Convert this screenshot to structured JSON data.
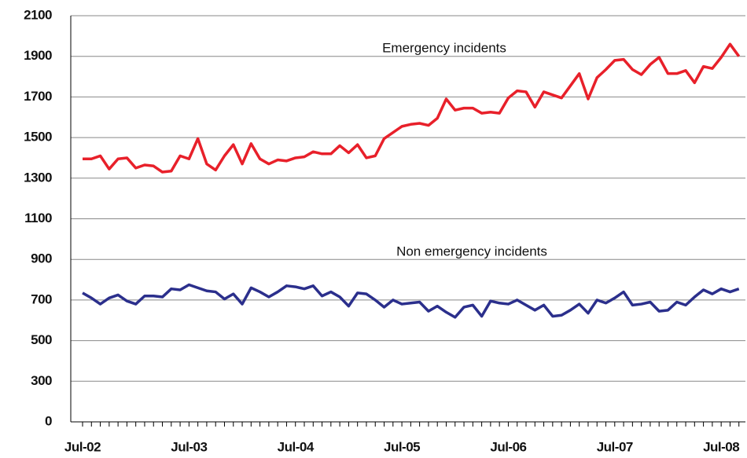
{
  "chart_data": {
    "type": "line",
    "categories": [
      "Jul-02",
      null,
      null,
      null,
      null,
      null,
      null,
      null,
      null,
      null,
      null,
      null,
      "Jul-03",
      null,
      null,
      null,
      null,
      null,
      null,
      null,
      null,
      null,
      null,
      null,
      "Jul-04",
      null,
      null,
      null,
      null,
      null,
      null,
      null,
      null,
      null,
      null,
      null,
      "Jul-05",
      null,
      null,
      null,
      null,
      null,
      null,
      null,
      null,
      null,
      null,
      null,
      "Jul-06",
      null,
      null,
      null,
      null,
      null,
      null,
      null,
      null,
      null,
      null,
      null,
      "Jul-07",
      null,
      null,
      null,
      null,
      null,
      null,
      null,
      null,
      null,
      null,
      null,
      "Jul-08",
      null,
      null
    ],
    "series": [
      {
        "name": "Emergency incidents",
        "color": "#e8202a",
        "values": [
          1395,
          1395,
          1410,
          1345,
          1395,
          1400,
          1350,
          1365,
          1360,
          1330,
          1335,
          1410,
          1395,
          1495,
          1370,
          1340,
          1410,
          1465,
          1370,
          1470,
          1395,
          1370,
          1390,
          1385,
          1400,
          1405,
          1430,
          1420,
          1420,
          1460,
          1425,
          1465,
          1400,
          1410,
          1495,
          1525,
          1555,
          1565,
          1570,
          1560,
          1595,
          1690,
          1635,
          1645,
          1645,
          1620,
          1625,
          1620,
          1695,
          1730,
          1725,
          1650,
          1725,
          1710,
          1695,
          1755,
          1815,
          1690,
          1795,
          1835,
          1880,
          1885,
          1835,
          1810,
          1860,
          1895,
          1815,
          1815,
          1830,
          1770,
          1850,
          1840,
          1895,
          1960,
          1900
        ]
      },
      {
        "name": "Non emergency incidents",
        "color": "#2b2f8c",
        "values": [
          735,
          710,
          680,
          710,
          725,
          695,
          680,
          720,
          720,
          715,
          755,
          750,
          775,
          760,
          745,
          740,
          705,
          730,
          680,
          760,
          740,
          715,
          740,
          770,
          765,
          755,
          770,
          720,
          740,
          715,
          670,
          735,
          730,
          700,
          665,
          700,
          680,
          685,
          690,
          645,
          670,
          640,
          615,
          665,
          675,
          620,
          695,
          685,
          680,
          700,
          675,
          650,
          675,
          620,
          625,
          650,
          680,
          635,
          700,
          685,
          710,
          740,
          675,
          680,
          690,
          645,
          650,
          690,
          675,
          715,
          750,
          730,
          755,
          740,
          755
        ]
      }
    ],
    "ylim": [
      100,
      2100
    ],
    "yticks": [
      0,
      300,
      500,
      700,
      900,
      1100,
      1300,
      1500,
      1700,
      1900,
      2100
    ],
    "grid": true
  }
}
